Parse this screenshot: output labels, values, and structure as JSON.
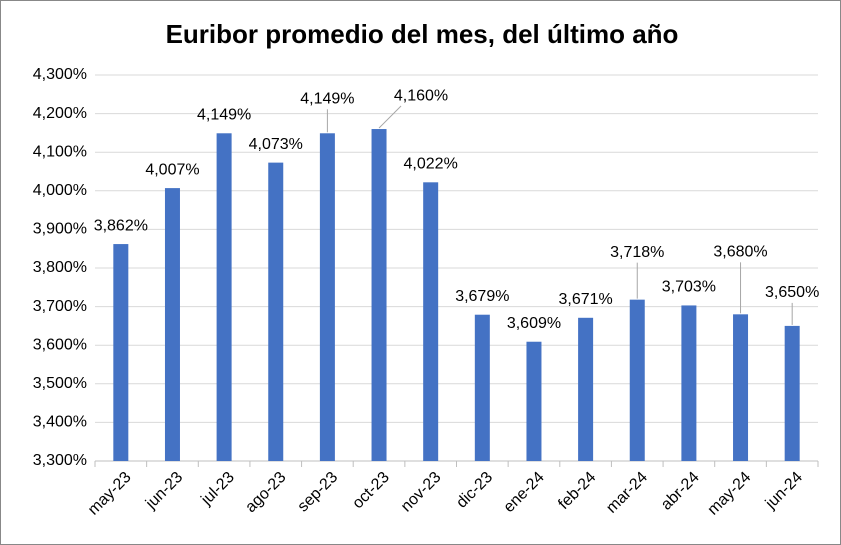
{
  "chart_data": {
    "type": "bar",
    "title": "Euribor promedio del mes, del último año",
    "categories": [
      "may-23",
      "jun-23",
      "jul-23",
      "ago-23",
      "sep-23",
      "oct-23",
      "nov-23",
      "dic-23",
      "ene-24",
      "feb-24",
      "mar-24",
      "abr-24",
      "may-24",
      "jun-24"
    ],
    "values": [
      3.862,
      4.007,
      4.149,
      4.073,
      4.149,
      4.16,
      4.022,
      3.679,
      3.609,
      3.671,
      3.718,
      3.703,
      3.68,
      3.65
    ],
    "value_labels": [
      "3,862%",
      "4,007%",
      "4,149%",
      "4,073%",
      "4,149%",
      "4,160%",
      "4,022%",
      "3,679%",
      "3,609%",
      "3,671%",
      "3,718%",
      "3,703%",
      "3,680%",
      "3,650%"
    ],
    "color": "#4472c4",
    "ylim": [
      3.3,
      4.3
    ],
    "yticks": [
      {
        "value": 3.3,
        "label": "3,300%"
      },
      {
        "value": 3.4,
        "label": "3,400%"
      },
      {
        "value": 3.5,
        "label": "3,500%"
      },
      {
        "value": 3.6,
        "label": "3,600%"
      },
      {
        "value": 3.7,
        "label": "3,700%"
      },
      {
        "value": 3.8,
        "label": "3,800%"
      },
      {
        "value": 3.9,
        "label": "3,900%"
      },
      {
        "value": 4.0,
        "label": "4,000%"
      },
      {
        "value": 4.1,
        "label": "4,100%"
      },
      {
        "value": 4.2,
        "label": "4,200%"
      },
      {
        "value": 4.3,
        "label": "4,300%"
      }
    ],
    "grid": true
  }
}
